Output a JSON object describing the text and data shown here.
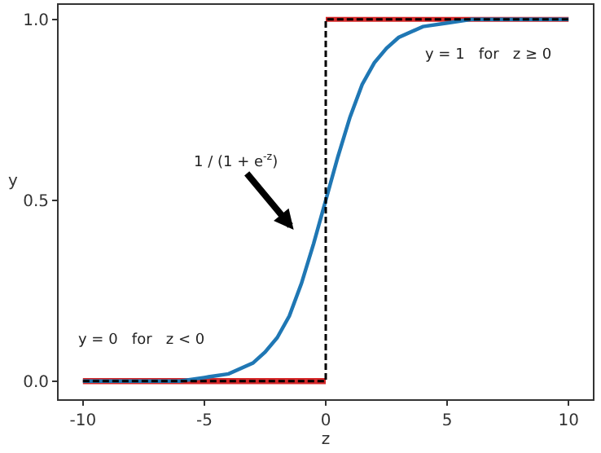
{
  "chart_data": {
    "type": "line",
    "xlabel": "z",
    "ylabel": "y",
    "xlim": [
      -11,
      11
    ],
    "ylim": [
      -0.05,
      1.04
    ],
    "xticks": [
      -10,
      -5,
      0,
      5,
      10
    ],
    "yticks": [
      {
        "value": 0,
        "label": "0.0"
      },
      {
        "value": 0.5,
        "label": "0.5"
      },
      {
        "value": 1,
        "label": "1.0"
      }
    ],
    "grid": false,
    "marker": "none",
    "series": [
      {
        "color": "#d62728",
        "x": [
          -10,
          0
        ],
        "values": [
          0,
          0
        ],
        "line_style": "solid"
      },
      {
        "color": "#d62728",
        "x": [
          0,
          10
        ],
        "values": [
          1,
          1
        ],
        "line_style": "solid"
      },
      {
        "color": "#1f77b4",
        "x": [
          -10,
          -8,
          -6,
          -5,
          -4,
          -3,
          -2.5,
          -2,
          -1.5,
          -1,
          -0.5,
          0,
          0.5,
          1,
          1.5,
          2,
          2.5,
          3,
          4,
          5,
          6,
          8,
          10
        ],
        "values": [
          0,
          0,
          0,
          0.01,
          0.02,
          0.05,
          0.08,
          0.12,
          0.18,
          0.27,
          0.38,
          0.5,
          0.62,
          0.73,
          0.82,
          0.88,
          0.92,
          0.95,
          0.98,
          0.99,
          1,
          1,
          1
        ],
        "line_style": "solid"
      },
      {
        "color": "#000000",
        "x": [
          -10,
          0,
          0,
          10
        ],
        "values": [
          0,
          0,
          1,
          1
        ],
        "line_style": "dashed"
      }
    ],
    "annotations": [
      "1 / (1 + e$^{-z}$)",
      "y = 1   for   z ≥ 0",
      "y = 0   for   z < 0"
    ]
  }
}
